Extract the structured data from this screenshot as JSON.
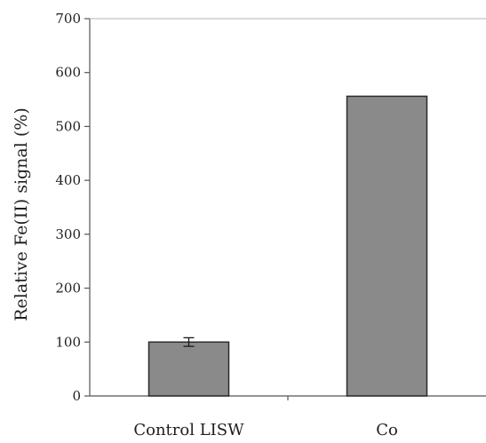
{
  "chart_data": {
    "type": "bar",
    "title": "",
    "xlabel": "",
    "ylabel": "Relative Fe(II) signal (%)",
    "categories": [
      "Control LISW",
      "Co"
    ],
    "values": [
      100,
      556
    ],
    "error": [
      8,
      null
    ],
    "ylim": [
      0,
      700
    ],
    "yticks": [
      0,
      100,
      200,
      300,
      400,
      500,
      600,
      700
    ],
    "ytick_labels": [
      "0",
      "100",
      "200",
      "300",
      "400",
      "500",
      "600",
      "700"
    ],
    "grid": false,
    "legend": "none",
    "colors": {
      "bar_fill": "#8a8a8a",
      "bar_stroke": "#2b2b2b",
      "axis": "#555555"
    }
  }
}
